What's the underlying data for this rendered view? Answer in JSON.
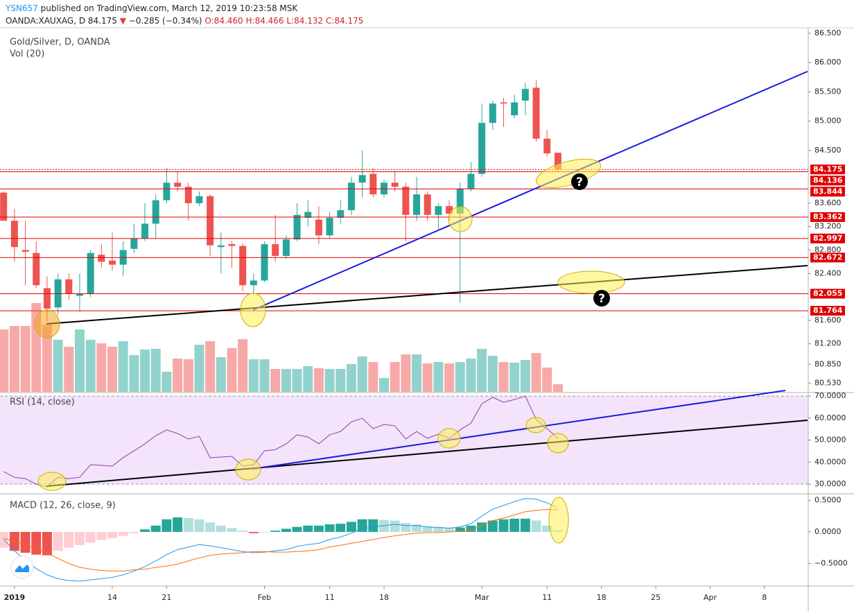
{
  "header": {
    "author": "YSN657",
    "published": " published on TradingView.com, March 12, 2019 10:23:58 MSK",
    "symbol": "OANDA:XAUXAG, D",
    "last": "84.175",
    "arrow": "▼",
    "change": "−0.285 (−0.34%)",
    "open": "O:84.460",
    "high": "H:84.466",
    "low": "L:84.132",
    "close": "C:84.175"
  },
  "annotations": [
    "?",
    "?"
  ],
  "chart_data": [
    {
      "type": "candlestick",
      "title": "Gold/Silver, D, OANDA",
      "open": [
        83.78,
        83.3,
        82.8,
        82.75,
        82.15,
        81.82,
        82.3,
        82.02,
        82.05,
        82.72,
        82.62,
        82.55,
        82.82,
        83.0,
        83.25,
        83.65,
        83.95,
        83.88,
        83.6,
        83.72,
        82.85,
        82.9,
        82.87,
        82.2,
        82.28,
        82.9,
        82.7,
        82.98,
        83.35,
        83.32,
        83.05,
        83.35,
        83.48,
        83.95,
        84.1,
        83.75,
        83.95,
        83.88,
        83.4,
        83.75,
        83.4,
        83.55,
        83.42,
        83.85,
        84.1,
        84.97,
        85.32,
        85.1,
        85.35,
        85.57,
        84.7,
        84.46
      ],
      "high": [
        83.8,
        83.5,
        83.3,
        82.95,
        82.35,
        82.4,
        82.4,
        82.4,
        82.8,
        82.9,
        83.1,
        82.95,
        83.25,
        83.6,
        83.75,
        84.2,
        84.15,
        83.95,
        83.8,
        83.75,
        83.1,
        82.95,
        82.92,
        82.4,
        82.95,
        83.4,
        83.05,
        83.6,
        83.65,
        83.55,
        83.45,
        83.65,
        84.05,
        84.5,
        84.2,
        84.0,
        84.15,
        83.95,
        84.05,
        83.8,
        83.6,
        83.65,
        83.95,
        84.3,
        85.3,
        85.35,
        85.4,
        85.45,
        85.65,
        85.7,
        84.85,
        84.466
      ],
      "low": [
        83.3,
        82.6,
        82.2,
        82.15,
        81.58,
        81.7,
        81.95,
        81.75,
        82.0,
        82.5,
        82.45,
        82.35,
        82.75,
        82.95,
        83.0,
        83.6,
        83.8,
        83.3,
        83.55,
        82.7,
        82.4,
        82.5,
        82.1,
        82.05,
        82.25,
        82.6,
        82.65,
        82.95,
        83.2,
        82.9,
        83.0,
        83.25,
        83.4,
        83.7,
        83.7,
        83.7,
        83.8,
        82.95,
        83.3,
        83.3,
        83.15,
        83.3,
        81.9,
        83.8,
        84.05,
        84.85,
        84.9,
        85.05,
        85.1,
        84.65,
        84.4,
        84.132
      ],
      "close": [
        83.3,
        82.85,
        82.77,
        82.2,
        81.8,
        82.3,
        82.05,
        82.05,
        82.75,
        82.6,
        82.55,
        82.8,
        83.0,
        83.25,
        83.65,
        83.95,
        83.88,
        83.6,
        83.72,
        82.88,
        82.88,
        82.87,
        82.2,
        82.28,
        82.9,
        82.7,
        82.98,
        83.4,
        83.45,
        83.05,
        83.35,
        83.48,
        83.95,
        84.08,
        83.75,
        83.95,
        83.88,
        83.4,
        83.75,
        83.4,
        83.55,
        83.42,
        83.85,
        84.1,
        84.97,
        85.3,
        85.3,
        85.32,
        85.55,
        84.7,
        84.45,
        84.175
      ],
      "up_color": "#26a69a",
      "down_color": "#ef5350",
      "ylim": [
        80.38,
        86.57
      ],
      "yticks": [
        {
          "value": 86.5,
          "label": "86.500"
        },
        {
          "value": 86,
          "label": "86.000"
        },
        {
          "value": 85.5,
          "label": "85.500"
        },
        {
          "value": 85,
          "label": "85.000"
        },
        {
          "value": 84.5,
          "label": "84.500"
        },
        {
          "value": 83.6,
          "label": "83.600"
        },
        {
          "value": 83.2,
          "label": "83.200"
        },
        {
          "value": 82.8,
          "label": "82.800"
        },
        {
          "value": 82.4,
          "label": "82.400"
        },
        {
          "value": 81.6,
          "label": "81.600"
        },
        {
          "value": 81.2,
          "label": "81.200"
        },
        {
          "value": 80.85,
          "label": "80.850"
        },
        {
          "value": 80.53,
          "label": "80.530"
        }
      ],
      "xticks": [
        {
          "value": 1,
          "label": "2019"
        },
        {
          "value": 10,
          "label": "14"
        },
        {
          "value": 15,
          "label": "21"
        },
        {
          "value": 24,
          "label": "Feb"
        },
        {
          "value": 30,
          "label": "11"
        },
        {
          "value": 35,
          "label": "18"
        },
        {
          "value": 44,
          "label": "Mar"
        },
        {
          "value": 50,
          "label": "11"
        },
        {
          "value": 55,
          "label": "18"
        },
        {
          "value": 60,
          "label": "25"
        },
        {
          "value": 65,
          "label": "Apr"
        },
        {
          "value": 70,
          "label": "8"
        }
      ],
      "last_price": 84.175,
      "levels": [
        84.136,
        83.844,
        83.362,
        82.997,
        82.672,
        82.055,
        81.764
      ],
      "level_color": "#e00000"
    },
    {
      "type": "bar",
      "title": "Vol (20)",
      "values": [
        90,
        95,
        95,
        128,
        97,
        75,
        65,
        90,
        75,
        70,
        65,
        73,
        53,
        61,
        62,
        29,
        48,
        47,
        68,
        73,
        50,
        63,
        76,
        47,
        47,
        33,
        33,
        33,
        37,
        34,
        33,
        33,
        40,
        51,
        43,
        20,
        43,
        54,
        54,
        41,
        43,
        41,
        43,
        48,
        62,
        52,
        43,
        42,
        46,
        56,
        35,
        11
      ],
      "ylim": [
        0,
        150
      ],
      "opacity": 0.5
    },
    {
      "type": "line",
      "title": "RSI (14, close)",
      "values": [
        35.7,
        33.1,
        32.5,
        30,
        28.7,
        33.1,
        32.5,
        33.1,
        38.8,
        38.5,
        38.2,
        42,
        45.1,
        48.3,
        52,
        54.6,
        53,
        50.5,
        51.7,
        42,
        42.3,
        42.6,
        38.2,
        38.8,
        45.1,
        45.7,
        48.3,
        52.4,
        51.4,
        48.3,
        52.4,
        53.9,
        58.3,
        59.9,
        55.2,
        57.1,
        56.5,
        50.5,
        53.9,
        50.8,
        52.7,
        50.8,
        54.6,
        57.7,
        66.5,
        69.4,
        67.2,
        68.4,
        70,
        59.3,
        55.2,
        50.8
      ],
      "color": "#8e3fa6",
      "band": [
        30,
        70
      ],
      "band_color": "#f3e3fb",
      "ylim": [
        25.6,
        71.6
      ],
      "yticks": [
        {
          "value": 70,
          "label": "70.0000"
        },
        {
          "value": 60,
          "label": "60.0000"
        },
        {
          "value": 50,
          "label": "50.0000"
        },
        {
          "value": 40,
          "label": "40.0000"
        },
        {
          "value": 30,
          "label": "30.0000"
        }
      ]
    },
    {
      "type": "macd",
      "title": "MACD (12, 26, close, 9)",
      "histogram": [
        -0.25,
        -0.3,
        -0.33,
        -0.36,
        -0.37,
        -0.3,
        -0.25,
        -0.21,
        -0.17,
        -0.13,
        -0.1,
        -0.06,
        -0.02,
        0.04,
        0.1,
        0.2,
        0.23,
        0.22,
        0.2,
        0.15,
        0.1,
        0.06,
        0.02,
        -0.02,
        -0.01,
        0.02,
        0.05,
        0.08,
        0.1,
        0.1,
        0.12,
        0.13,
        0.16,
        0.2,
        0.2,
        0.19,
        0.18,
        0.14,
        0.12,
        0.09,
        0.08,
        0.06,
        0.07,
        0.1,
        0.15,
        0.18,
        0.2,
        0.21,
        0.21,
        0.18,
        0.1,
        0.03
      ],
      "series": [
        {
          "color": "#2196f3",
          "values": [
            -0.12,
            -0.3,
            -0.45,
            -0.58,
            -0.68,
            -0.74,
            -0.77,
            -0.78,
            -0.76,
            -0.74,
            -0.72,
            -0.68,
            -0.62,
            -0.55,
            -0.46,
            -0.36,
            -0.28,
            -0.24,
            -0.2,
            -0.22,
            -0.25,
            -0.28,
            -0.31,
            -0.33,
            -0.32,
            -0.3,
            -0.28,
            -0.23,
            -0.2,
            -0.18,
            -0.12,
            -0.08,
            -0.02,
            0.05,
            0.08,
            0.1,
            0.12,
            0.1,
            0.1,
            0.08,
            0.07,
            0.06,
            0.08,
            0.13,
            0.25,
            0.36,
            0.42,
            0.48,
            0.53,
            0.52,
            0.46,
            0.38
          ]
        },
        {
          "color": "#ff6d00",
          "values": [
            -0.1,
            -0.15,
            -0.2,
            -0.27,
            -0.33,
            -0.42,
            -0.5,
            -0.56,
            -0.59,
            -0.61,
            -0.62,
            -0.62,
            -0.6,
            -0.59,
            -0.56,
            -0.54,
            -0.51,
            -0.46,
            -0.41,
            -0.37,
            -0.35,
            -0.34,
            -0.33,
            -0.31,
            -0.31,
            -0.32,
            -0.32,
            -0.31,
            -0.3,
            -0.28,
            -0.24,
            -0.21,
            -0.18,
            -0.15,
            -0.12,
            -0.09,
            -0.06,
            -0.04,
            -0.02,
            -0.01,
            -0.01,
            0,
            0.01,
            0.03,
            0.1,
            0.18,
            0.22,
            0.27,
            0.32,
            0.34,
            0.36,
            0.35
          ]
        }
      ],
      "pos_colors": [
        "#26a69a",
        "#b2dfdb"
      ],
      "neg_colors": [
        "#ef5350",
        "#ffcdd2"
      ],
      "ylim": [
        -0.857,
        0.604
      ],
      "yticks": [
        {
          "value": 0.5,
          "label": "0.5000"
        },
        {
          "value": 0,
          "label": "0.0000"
        },
        {
          "value": -0.5,
          "label": "−0.5000"
        }
      ]
    }
  ]
}
